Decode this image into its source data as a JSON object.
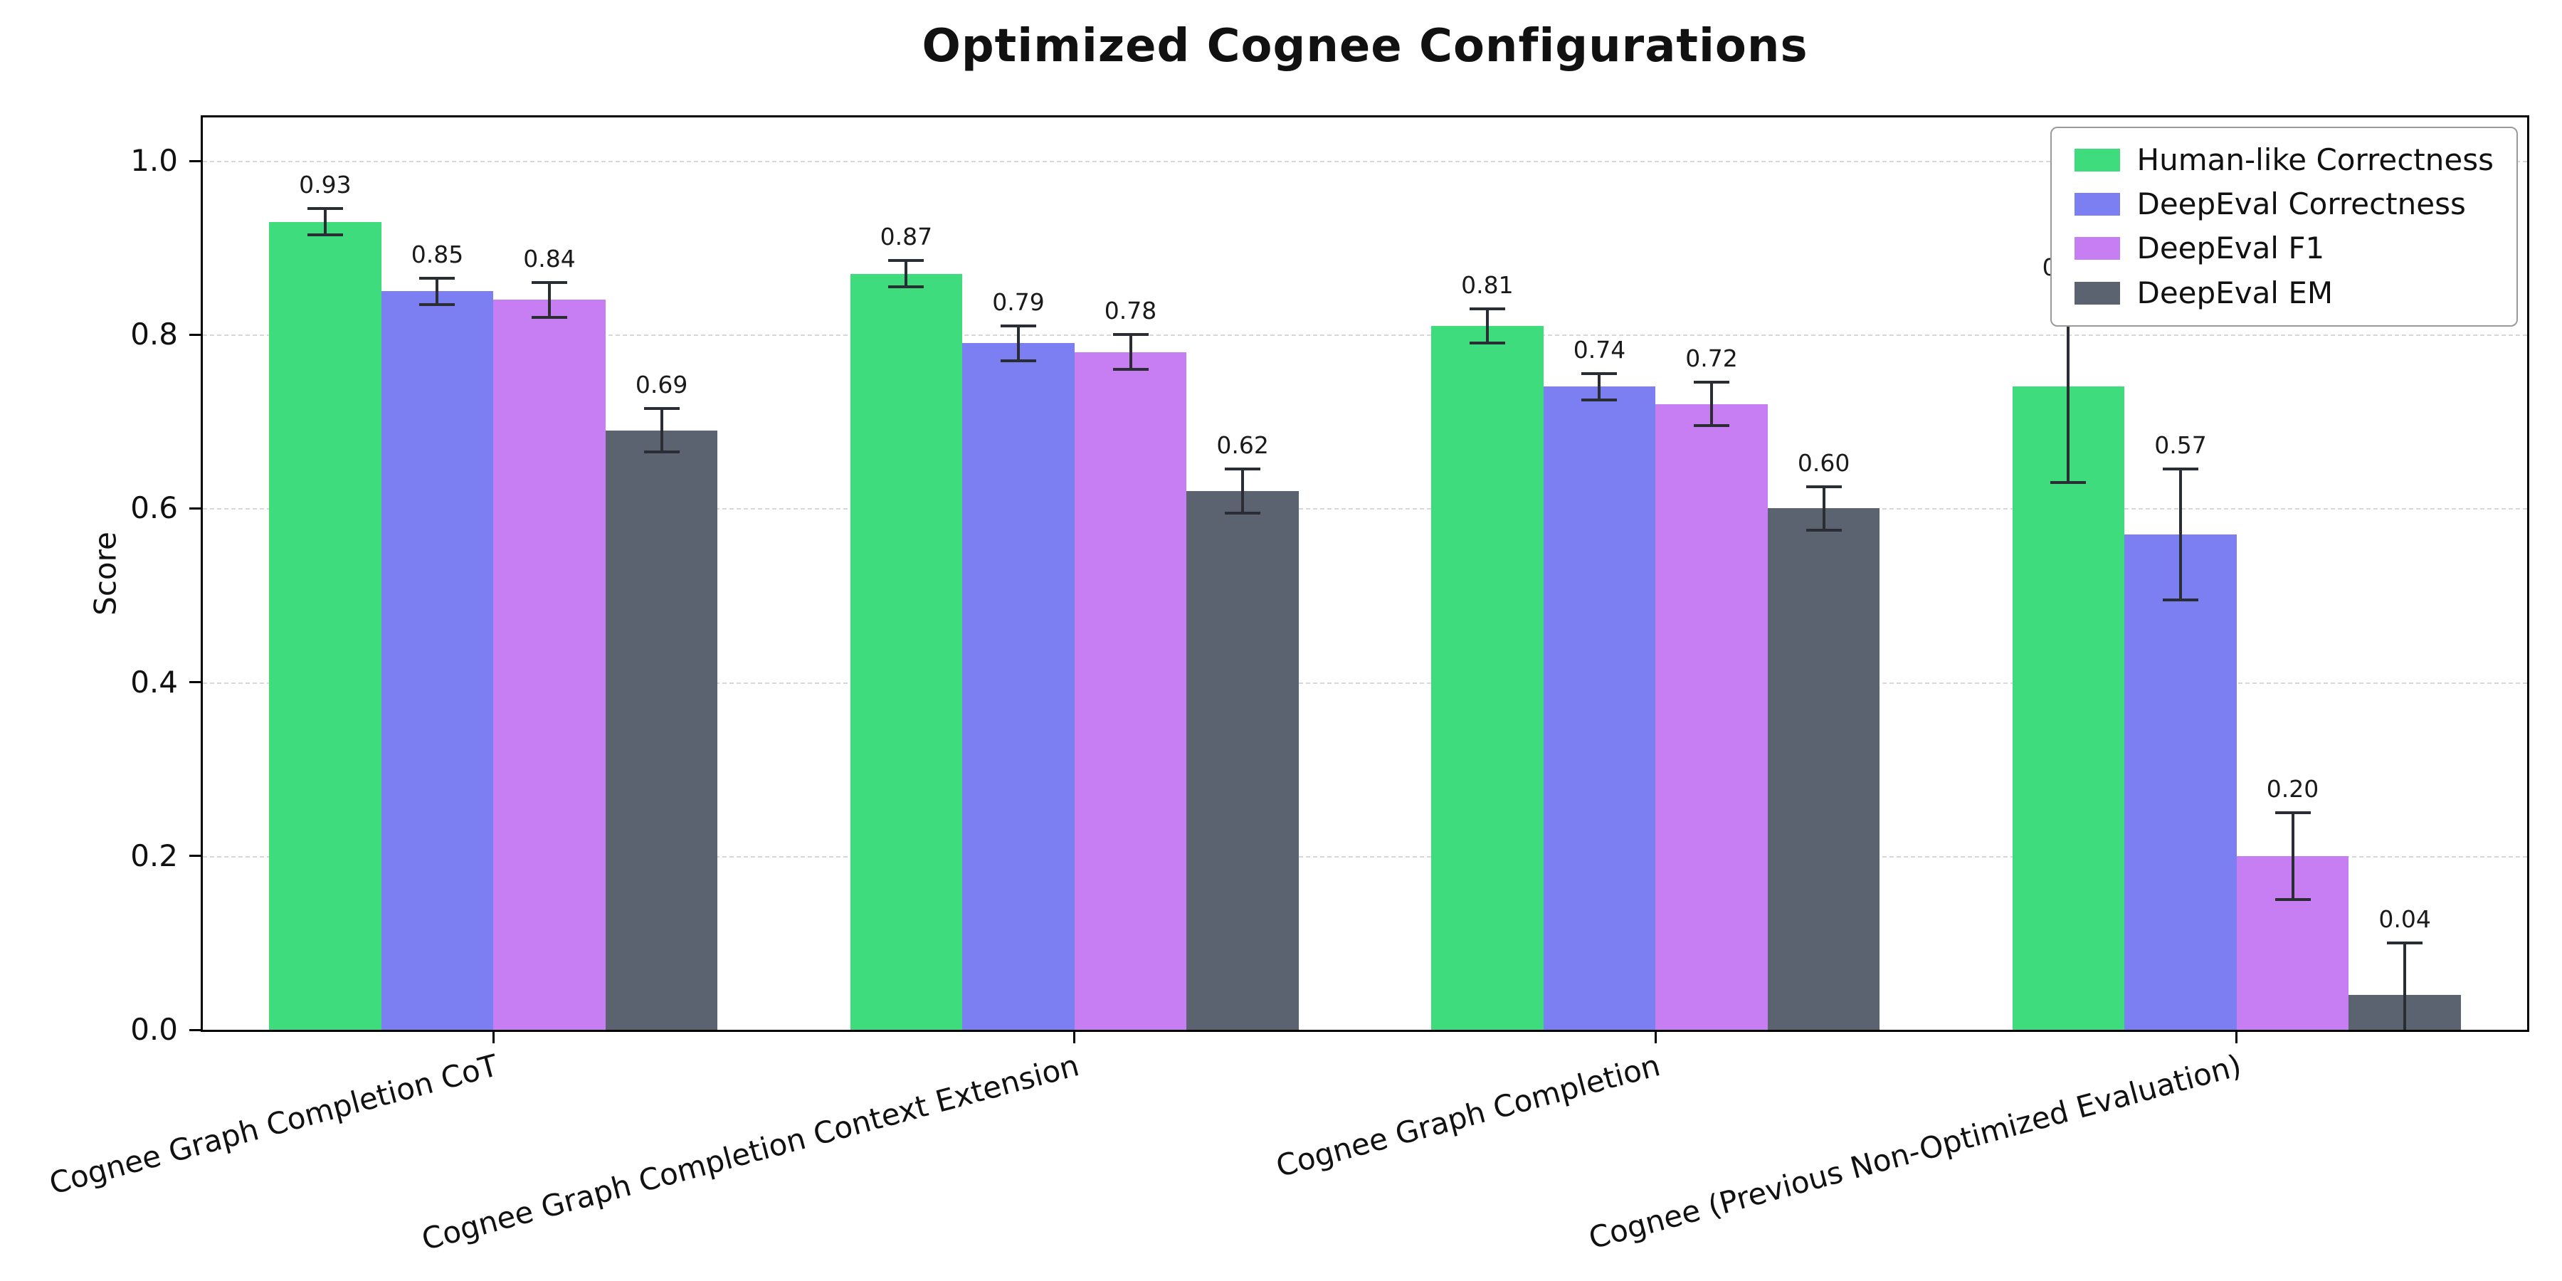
{
  "chart_data": {
    "type": "bar",
    "title": "Optimized Cognee Configurations",
    "xlabel": "",
    "ylabel": "Score",
    "ylim": [
      0,
      1.05
    ],
    "yticks": [
      0.0,
      0.2,
      0.4,
      0.6,
      0.8,
      1.0
    ],
    "ytick_labels": [
      "0.0",
      "0.2",
      "0.4",
      "0.6",
      "0.8",
      "1.0"
    ],
    "grid": "horizontal-dashed",
    "legend_position": "upper-right",
    "bar_value_labels": true,
    "error_bars": true,
    "categories": [
      "Cognee Graph Completion CoT",
      "Cognee Graph Completion Context Extension",
      "Cognee Graph Completion",
      "Cognee (Previous Non-Optimized Evaluation)"
    ],
    "series": [
      {
        "name": "Human-like Correctness",
        "color": "#3fdc7e",
        "values": [
          0.93,
          0.87,
          0.81,
          0.74
        ],
        "errors": [
          0.015,
          0.015,
          0.02,
          0.11
        ]
      },
      {
        "name": "DeepEval Correctness",
        "color": "#7b7ff2",
        "values": [
          0.85,
          0.79,
          0.74,
          0.57
        ],
        "errors": [
          0.015,
          0.02,
          0.015,
          0.075
        ]
      },
      {
        "name": "DeepEval F1",
        "color": "#c77ef2",
        "values": [
          0.84,
          0.78,
          0.72,
          0.2
        ],
        "errors": [
          0.02,
          0.02,
          0.025,
          0.05
        ]
      },
      {
        "name": "DeepEval EM",
        "color": "#5c6370",
        "values": [
          0.69,
          0.62,
          0.6,
          0.04
        ],
        "errors": [
          0.025,
          0.025,
          0.025,
          0.06
        ]
      }
    ],
    "style": {
      "background": "#ffffff",
      "text_color": "#111111",
      "axis_color": "#000000",
      "grid_color": "#d8d8d8",
      "error_color": "#2a2d34"
    }
  }
}
